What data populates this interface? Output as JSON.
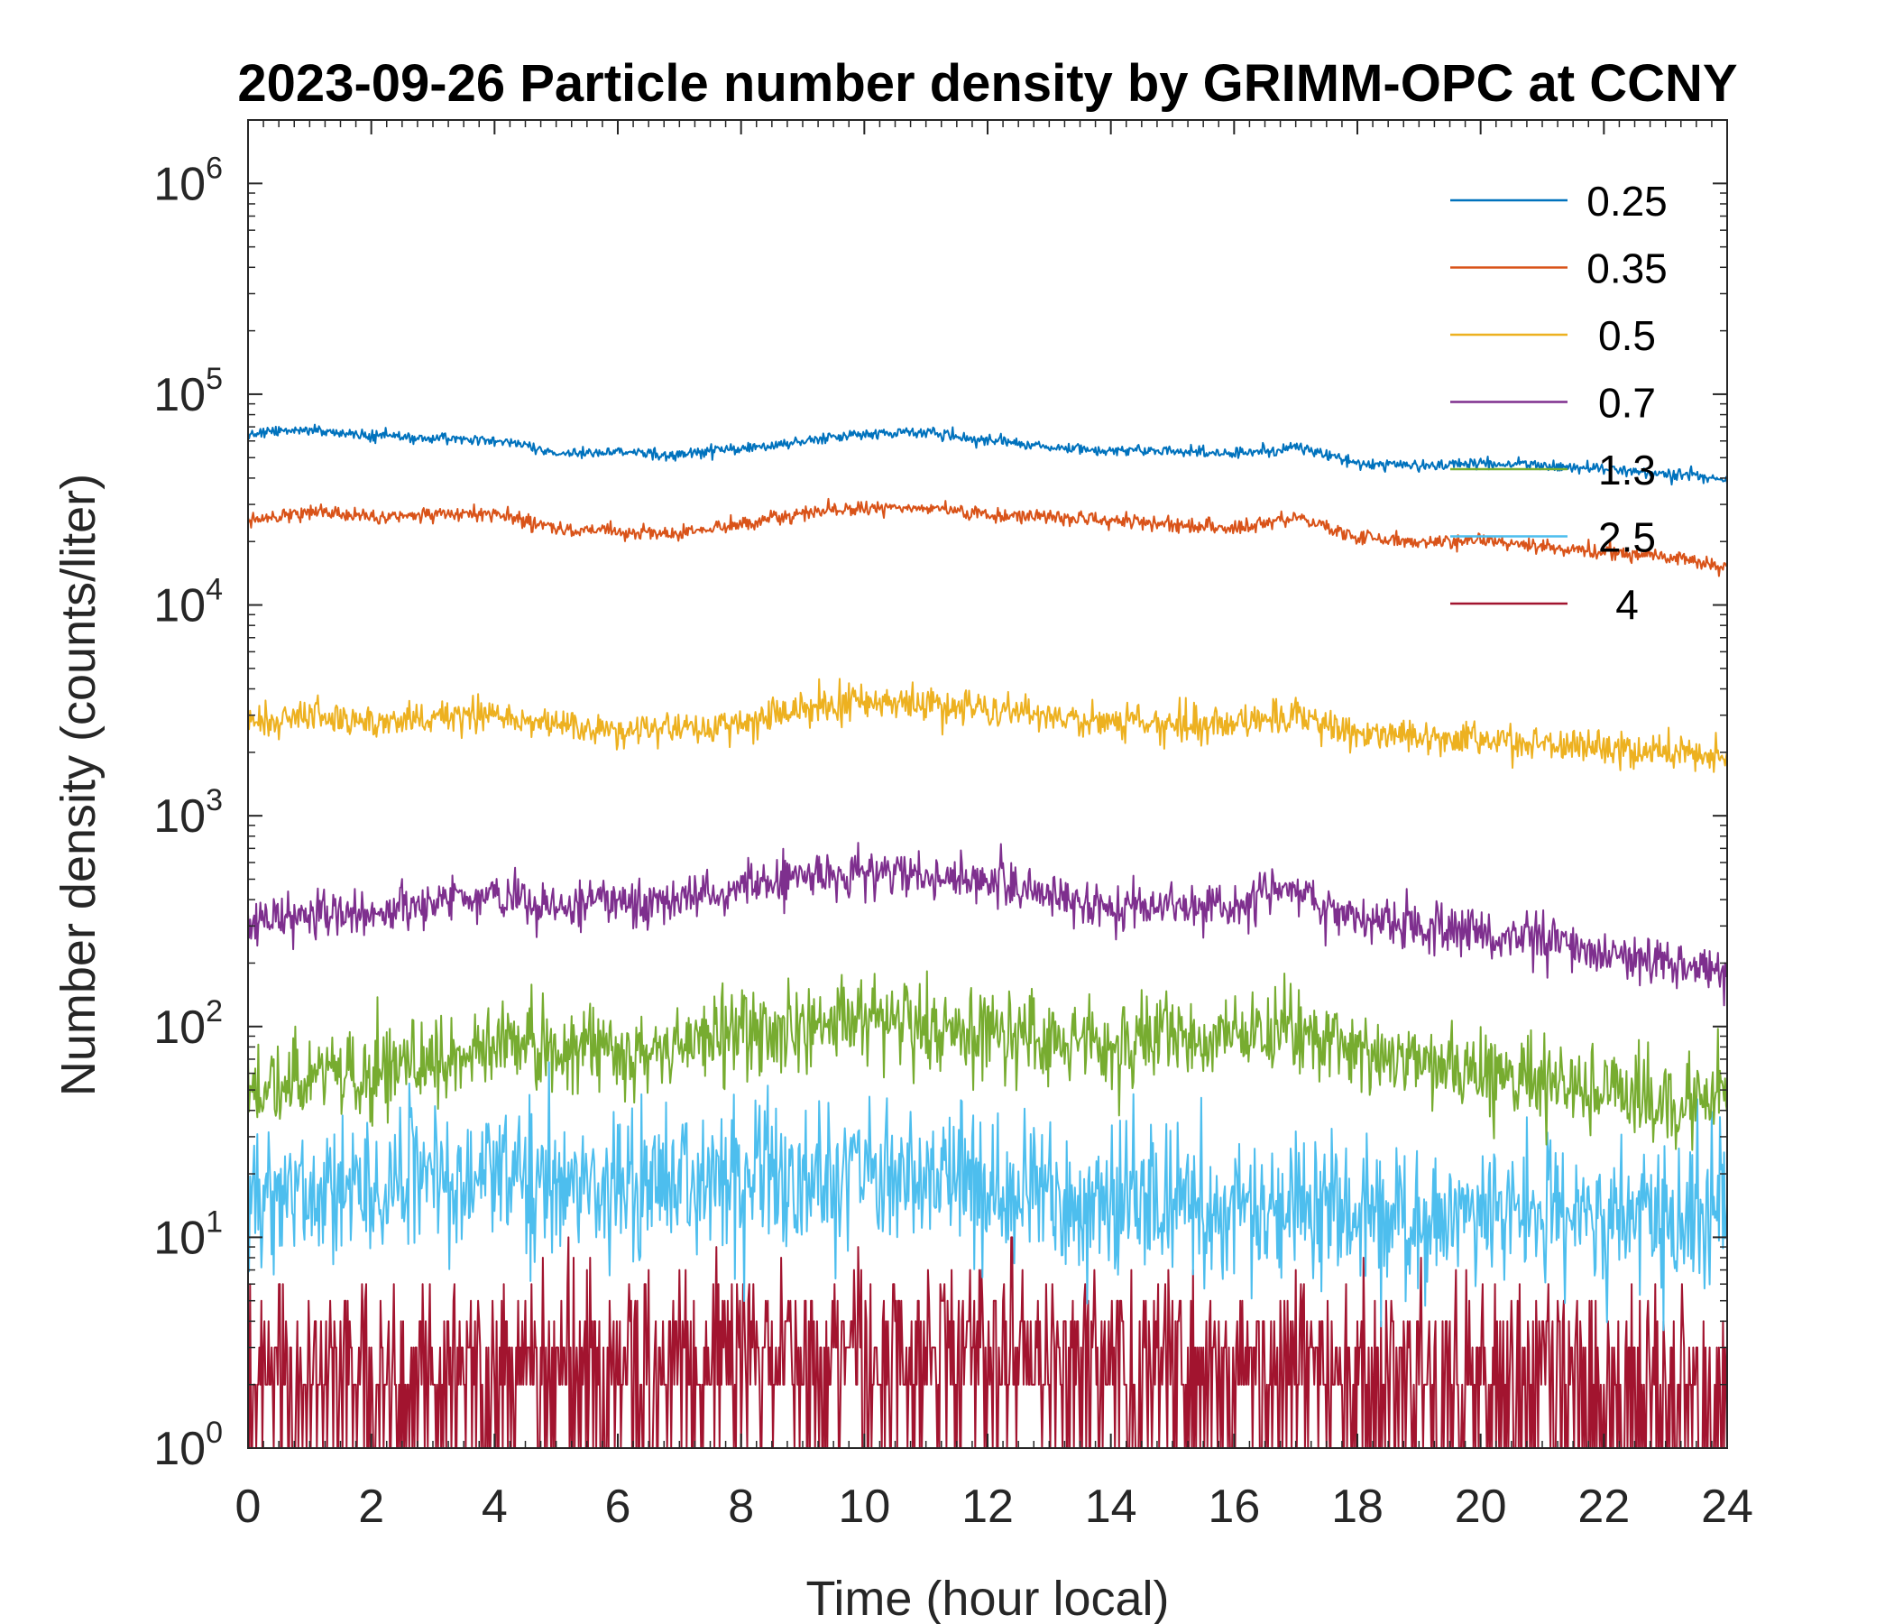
{
  "chart_data": {
    "type": "line",
    "title": "2023-09-26 Particle number density by GRIMM-OPC at CCNY",
    "xlabel": "Time (hour local)",
    "ylabel": "Number density (counts/liter)",
    "xlim": [
      0,
      24
    ],
    "ylim": [
      1,
      2000000
    ],
    "yscale": "log",
    "x_ticks": [
      0,
      2,
      4,
      6,
      8,
      10,
      12,
      14,
      16,
      18,
      20,
      22,
      24
    ],
    "y_ticks": [
      {
        "value": 1,
        "base": "10",
        "exp": "0"
      },
      {
        "value": 10,
        "base": "10",
        "exp": "1"
      },
      {
        "value": 100,
        "base": "10",
        "exp": "2"
      },
      {
        "value": 1000,
        "base": "10",
        "exp": "3"
      },
      {
        "value": 10000,
        "base": "10",
        "exp": "4"
      },
      {
        "value": 100000,
        "base": "10",
        "exp": "5"
      },
      {
        "value": 1000000,
        "base": "10",
        "exp": "6"
      }
    ],
    "legend_position": "top-right",
    "x": [
      0,
      1,
      2,
      3,
      4,
      5,
      6,
      7,
      8,
      9,
      10,
      11,
      12,
      13,
      14,
      15,
      16,
      17,
      18,
      19,
      20,
      21,
      22,
      23,
      24
    ],
    "series": [
      {
        "name": "0.25",
        "color": "#0072BD",
        "noise": 0.03,
        "values": [
          65000,
          68000,
          64000,
          62000,
          61000,
          52000,
          53000,
          52000,
          55000,
          60000,
          65000,
          66000,
          60000,
          56000,
          54000,
          54000,
          52000,
          56000,
          47000,
          46000,
          47000,
          46000,
          44000,
          42000,
          39000
        ]
      },
      {
        "name": "0.35",
        "color": "#D95319",
        "noise": 0.04,
        "values": [
          25000,
          28000,
          26000,
          27000,
          27000,
          23000,
          22000,
          22000,
          24000,
          27000,
          29000,
          29000,
          27000,
          26000,
          25000,
          24000,
          23000,
          26000,
          21000,
          20000,
          20000,
          19000,
          18000,
          17000,
          15000
        ]
      },
      {
        "name": "0.5",
        "color": "#EDB120",
        "noise": 0.09,
        "values": [
          2700,
          3000,
          2800,
          2900,
          3000,
          2700,
          2500,
          2600,
          2800,
          3200,
          3500,
          3400,
          3200,
          2900,
          2800,
          2700,
          2700,
          3000,
          2400,
          2400,
          2300,
          2200,
          2100,
          2000,
          1900
        ]
      },
      {
        "name": "0.7",
        "color": "#7E2F8E",
        "noise": 0.13,
        "values": [
          310,
          340,
          340,
          390,
          420,
          380,
          380,
          400,
          450,
          500,
          540,
          540,
          490,
          420,
          360,
          370,
          380,
          440,
          330,
          300,
          280,
          260,
          220,
          200,
          180
        ]
      },
      {
        "name": "1.3",
        "color": "#77AC30",
        "noise": 0.25,
        "values": [
          50,
          60,
          60,
          70,
          80,
          75,
          75,
          80,
          95,
          105,
          110,
          105,
          95,
          90,
          85,
          85,
          90,
          95,
          75,
          65,
          60,
          55,
          50,
          45,
          45
        ]
      },
      {
        "name": "2.5",
        "color": "#4DBEEE",
        "noise": 0.4,
        "values": [
          15,
          17,
          17,
          18,
          19,
          18,
          18,
          18,
          20,
          21,
          20,
          19,
          17,
          15,
          14,
          14,
          14,
          14,
          13,
          13,
          13,
          13,
          13,
          13,
          13
        ]
      },
      {
        "name": "4",
        "color": "#A2142F",
        "noise": "counts",
        "values": [
          2.2,
          2.3,
          2.4,
          2.5,
          2.6,
          2.6,
          2.7,
          2.7,
          2.8,
          2.9,
          3.0,
          3.0,
          3.0,
          2.9,
          2.8,
          2.7,
          2.6,
          2.6,
          2.5,
          2.4,
          2.4,
          2.3,
          2.2,
          2.1,
          2.0
        ]
      }
    ]
  }
}
